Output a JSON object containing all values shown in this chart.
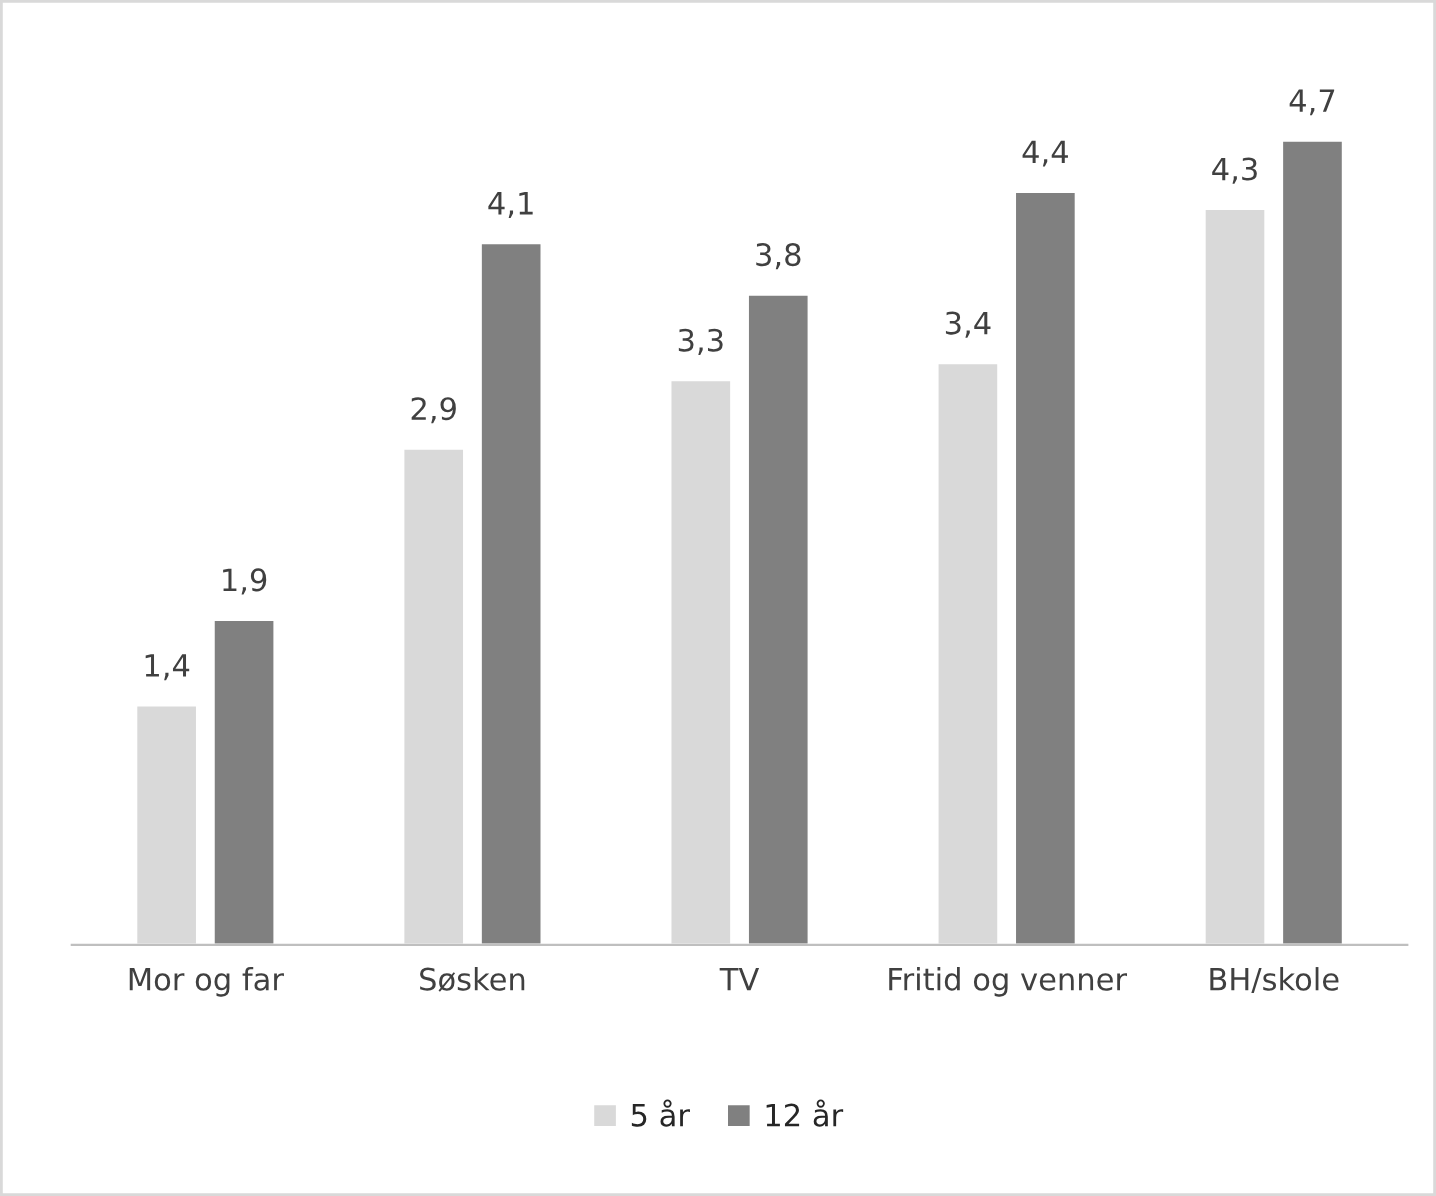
{
  "chart_data": {
    "type": "bar",
    "categories": [
      "Mor og far",
      "Søsken",
      "TV",
      "Fritid og venner",
      "BH/skole"
    ],
    "series": [
      {
        "name": "5 år",
        "color": "#d9d9d9",
        "values": [
          1.4,
          2.9,
          3.3,
          3.4,
          4.3
        ],
        "value_labels": [
          "1,4",
          "2,9",
          "3,3",
          "3,4",
          "4,3"
        ]
      },
      {
        "name": "12 år",
        "color": "#808080",
        "values": [
          1.9,
          4.1,
          3.8,
          4.4,
          4.7
        ],
        "value_labels": [
          "1,9",
          "4,1",
          "3,8",
          "4,4",
          "4,7"
        ]
      }
    ],
    "grid": false,
    "legend": "bottom"
  }
}
